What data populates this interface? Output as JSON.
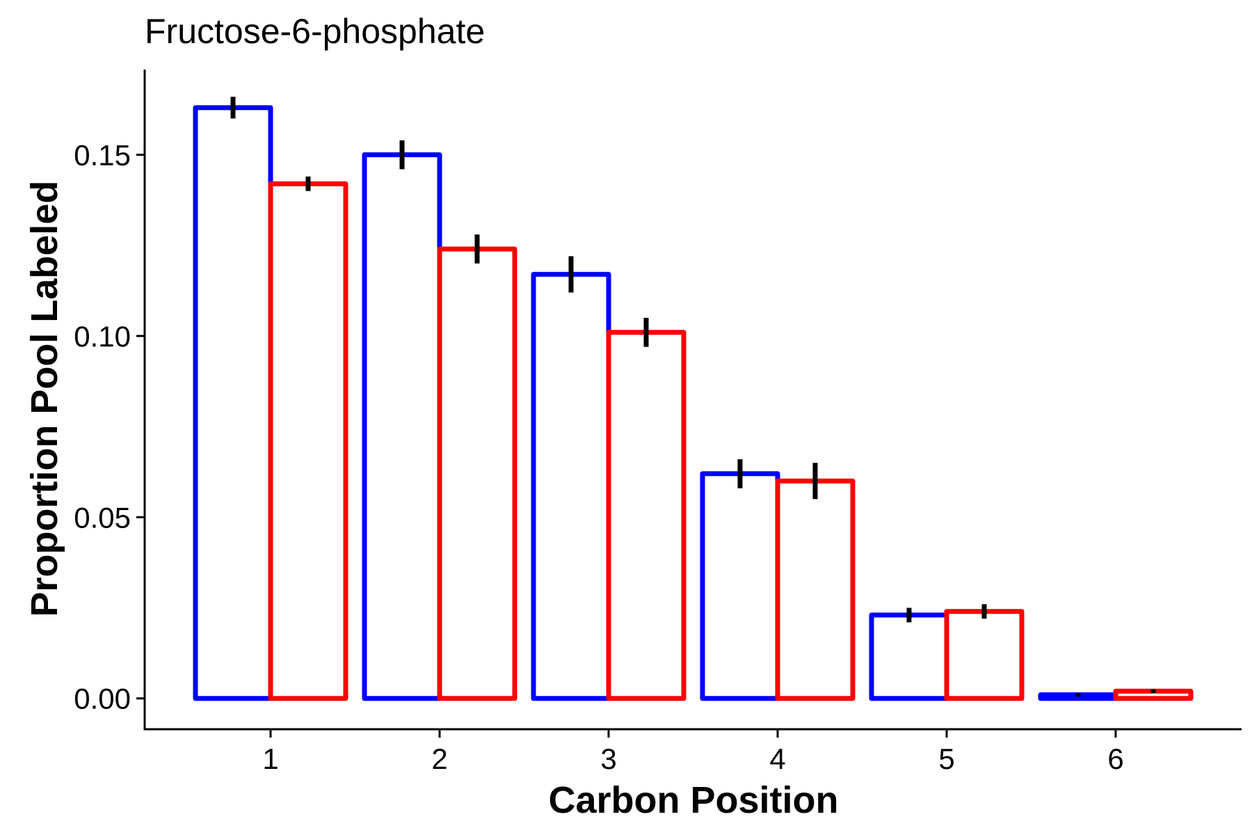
{
  "chart_data": {
    "type": "bar",
    "title": "Fructose-6-phosphate",
    "xlabel": "Carbon Position",
    "ylabel": "Proportion Pool Labeled",
    "categories": [
      "1",
      "2",
      "3",
      "4",
      "5",
      "6"
    ],
    "series": [
      {
        "color": "#0000ff",
        "values": [
          0.163,
          0.15,
          0.117,
          0.062,
          0.023,
          0.001
        ],
        "errors": [
          0.003,
          0.004,
          0.005,
          0.004,
          0.002,
          0.0005
        ]
      },
      {
        "color": "#ff0000",
        "values": [
          0.142,
          0.124,
          0.101,
          0.06,
          0.024,
          0.002
        ],
        "errors": [
          0.002,
          0.004,
          0.004,
          0.005,
          0.002,
          0.0005
        ]
      }
    ],
    "ylim": [
      -0.0085,
      0.1735
    ],
    "yticks": [
      "0.00",
      "0.05",
      "0.10",
      "0.15"
    ],
    "legend": "none",
    "grid": false,
    "error_bar_color": "#000000"
  }
}
